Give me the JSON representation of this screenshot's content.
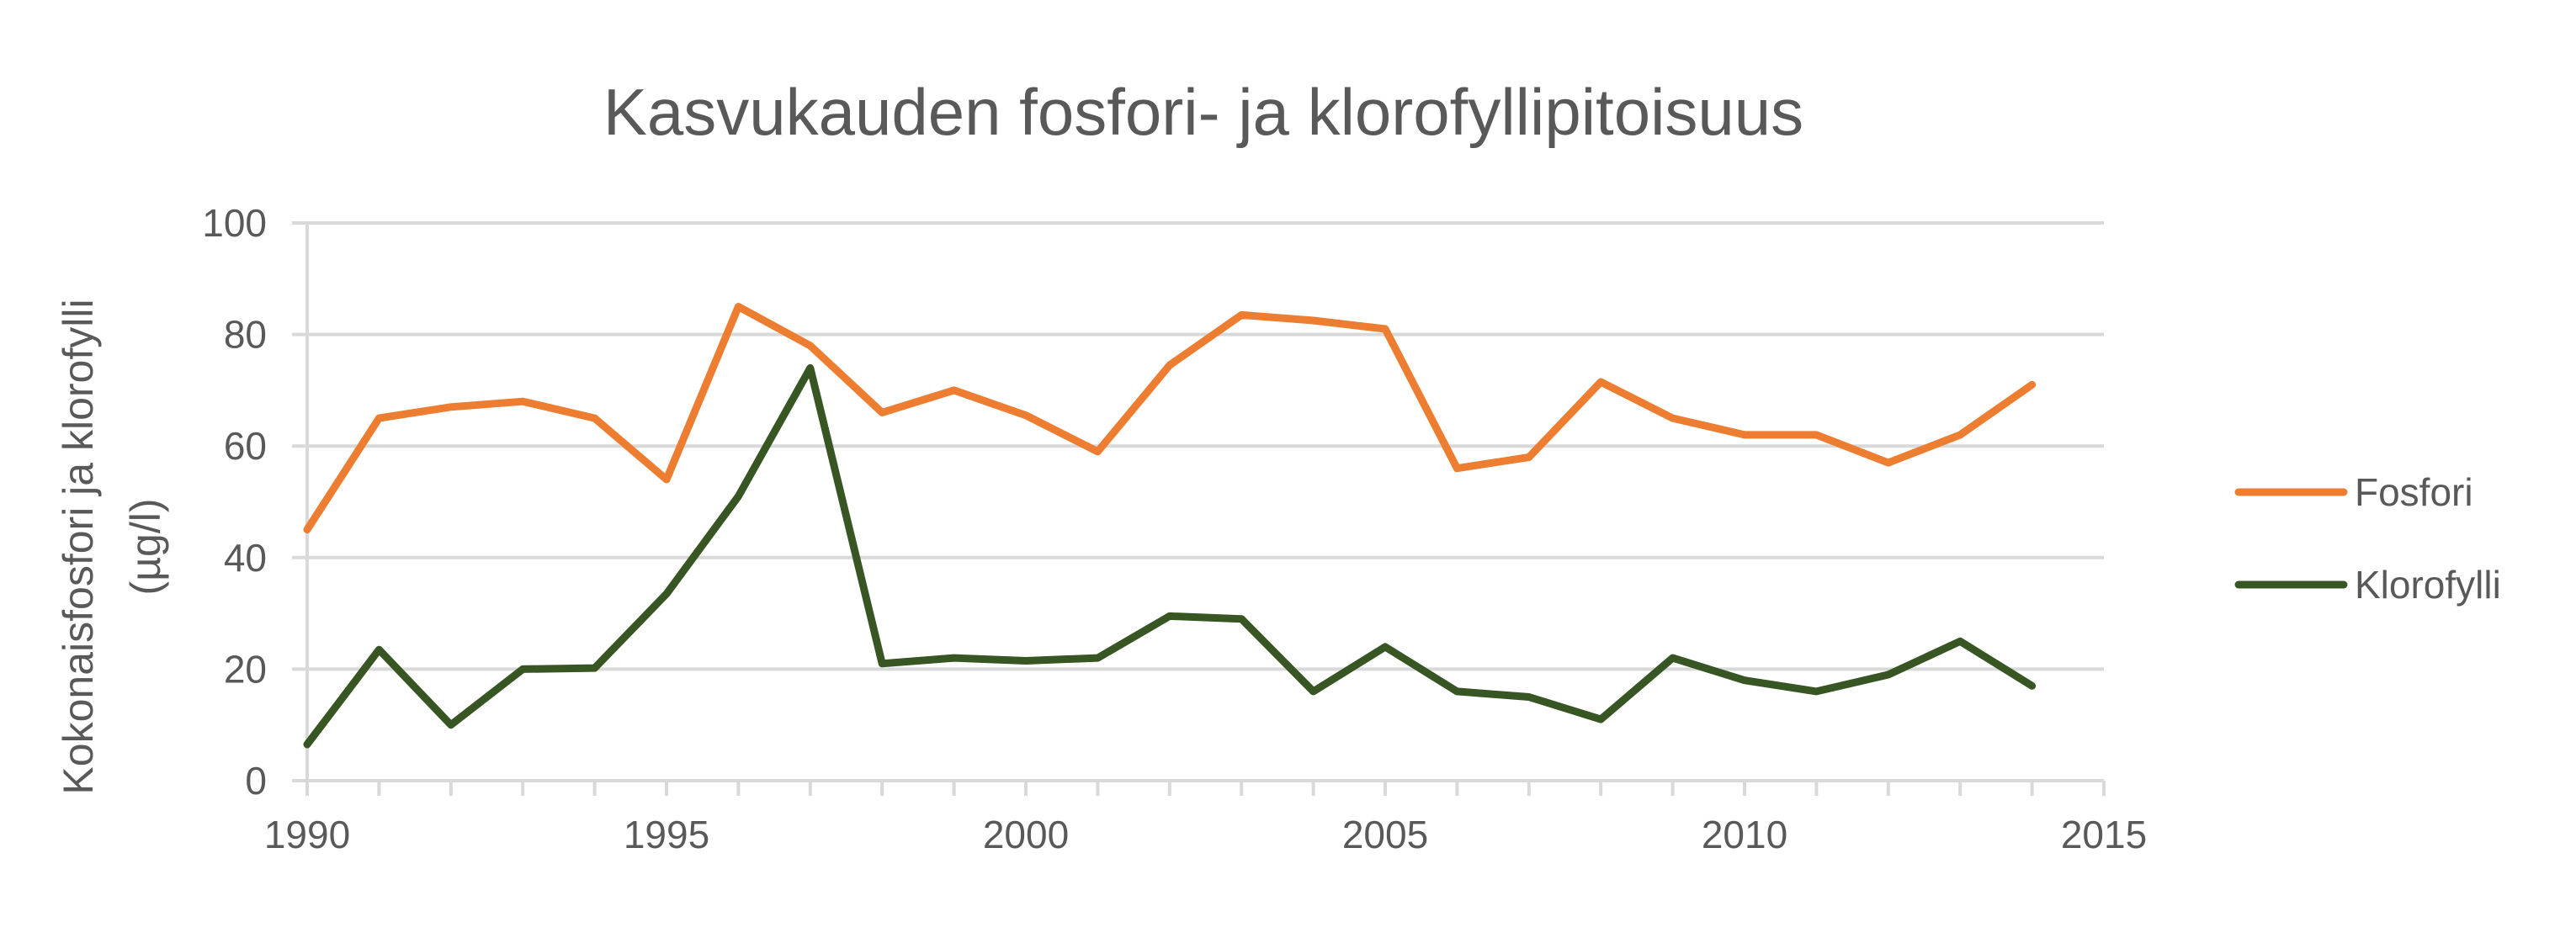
{
  "chart_data": {
    "type": "line",
    "title": "Kasvukauden fosfori- ja klorofyllipitoisuus",
    "ylabel_lines": [
      "Kokonaisfosfori ja klorofylli",
      "(µg/l)"
    ],
    "xlabel": "",
    "x": [
      1990,
      1991,
      1992,
      1993,
      1994,
      1995,
      1996,
      1997,
      1998,
      1999,
      2000,
      2001,
      2002,
      2003,
      2004,
      2005,
      2006,
      2007,
      2008,
      2009,
      2010,
      2011,
      2012,
      2013,
      2014
    ],
    "xlim": [
      1990,
      2015
    ],
    "xticks": [
      1990,
      1995,
      2000,
      2005,
      2010,
      2015
    ],
    "ylim": [
      0,
      100
    ],
    "yticks": [
      0,
      20,
      40,
      60,
      80,
      100
    ],
    "grid": true,
    "legend_position": "right",
    "series": [
      {
        "name": "Fosfori",
        "color": "#ED7D31",
        "values": [
          45,
          65,
          67,
          68,
          65,
          54,
          85,
          78,
          66,
          70,
          65.5,
          59,
          74.5,
          83.5,
          82.5,
          81,
          56,
          58,
          71.5,
          65,
          62,
          62,
          57,
          62,
          71
        ]
      },
      {
        "name": "Klorofylli",
        "color": "#375623",
        "values": [
          6.5,
          23.5,
          10,
          20,
          20.2,
          33.5,
          51,
          74,
          21,
          22,
          21.5,
          22,
          29.5,
          29,
          16,
          24,
          16,
          15,
          11,
          22,
          18,
          16,
          19,
          25,
          17
        ]
      }
    ]
  }
}
